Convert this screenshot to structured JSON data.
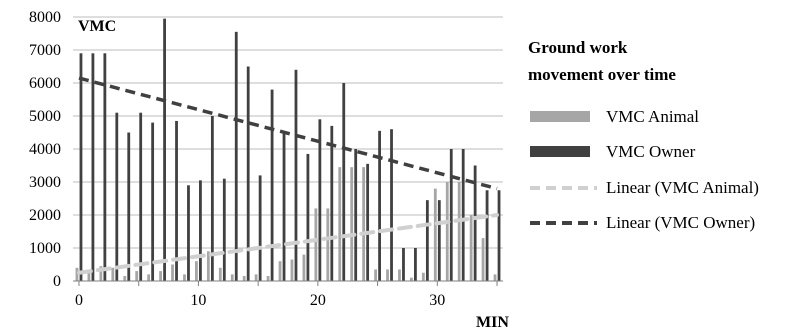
{
  "chart_data": {
    "type": "bar",
    "ylabel": "VMC",
    "xlabel": "MIN",
    "ylim": [
      0,
      8000
    ],
    "xlim": [
      -0.5,
      35.5
    ],
    "yticks": [
      0,
      1000,
      2000,
      3000,
      4000,
      5000,
      6000,
      7000,
      8000
    ],
    "xticks": [
      0,
      10,
      20,
      30
    ],
    "grid": "horizontal",
    "legend_position": "right",
    "legend_title_lines": [
      "Ground work",
      "movement over time"
    ],
    "colors": {
      "animal": "#a6a6a6",
      "owner": "#404040",
      "trend_animal": "#d0d0d0",
      "trend_owner": "#404040",
      "grid": "#bdbdbd"
    },
    "x": [
      0,
      1,
      2,
      3,
      4,
      5,
      6,
      7,
      8,
      9,
      10,
      11,
      12,
      13,
      14,
      15,
      16,
      17,
      18,
      19,
      20,
      21,
      22,
      23,
      24,
      25,
      26,
      27,
      28,
      29,
      30,
      31,
      32,
      33,
      34,
      35
    ],
    "series": [
      {
        "name": "VMC Animal",
        "kind": "bar",
        "values": [
          400,
          300,
          450,
          400,
          150,
          300,
          200,
          300,
          500,
          200,
          600,
          900,
          400,
          200,
          150,
          200,
          150,
          600,
          650,
          800,
          2200,
          2200,
          3450,
          3450,
          3450,
          350,
          350,
          350,
          100,
          250,
          2800,
          3000,
          3000,
          2000,
          1300,
          200
        ]
      },
      {
        "name": "VMC Owner",
        "kind": "bar",
        "values": [
          6900,
          6900,
          6900,
          5100,
          4500,
          5100,
          4800,
          7950,
          4850,
          2900,
          3050,
          5000,
          3100,
          7550,
          6500,
          3200,
          5800,
          4500,
          6400,
          3850,
          4900,
          4700,
          6000,
          4000,
          3550,
          4550,
          4600,
          1000,
          1000,
          2450,
          2450,
          4000,
          4000,
          3500,
          2750,
          2750
        ]
      },
      {
        "name": "Linear (VMC Animal)",
        "kind": "trendline",
        "start": 250,
        "end": 2000
      },
      {
        "name": "Linear (VMC Owner)",
        "kind": "trendline",
        "start": 6150,
        "end": 2800
      }
    ]
  }
}
